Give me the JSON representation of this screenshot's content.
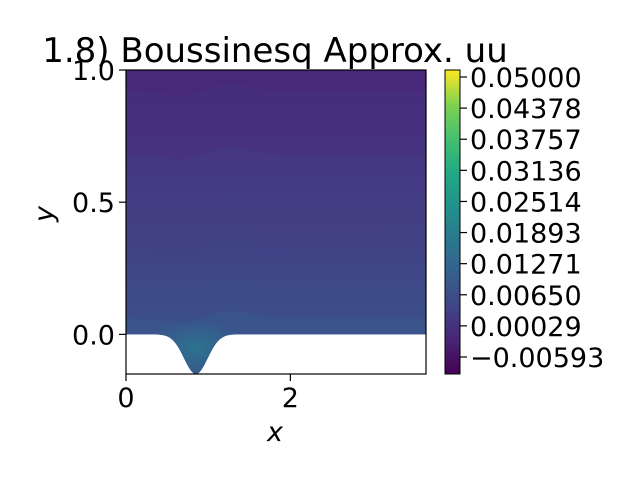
{
  "chart_data": {
    "type": "heatmap",
    "title": "1.8) Boussinesq Approx. uu",
    "xlabel": "x",
    "ylabel": "y",
    "xlim": [
      0,
      3.65
    ],
    "ylim": [
      -0.15,
      1.0
    ],
    "xticks": [
      {
        "value": 0,
        "label": "0"
      },
      {
        "value": 2,
        "label": "2"
      }
    ],
    "yticks": [
      {
        "value": 0.0,
        "label": "0.0"
      },
      {
        "value": 0.5,
        "label": "0.5"
      },
      {
        "value": 1.0,
        "label": "1.0"
      }
    ],
    "colormap": "viridis",
    "colorbar": {
      "min": -0.00593,
      "max": 0.05,
      "ticks": [
        "0.05000",
        "0.04378",
        "0.03757",
        "0.03136",
        "0.02514",
        "0.01893",
        "0.01271",
        "0.00650",
        "0.00029",
        "−0.00593"
      ]
    },
    "bottom_boundary": {
      "description": "Gaussian bump",
      "center_x": 0.85,
      "depth": -0.15,
      "width": 0.3,
      "flat_after_x": 1.6
    },
    "field_summary": {
      "near_wall_value": 0.008,
      "mid_value": 0.004,
      "top_value": 0.001,
      "bump_peak_value": 0.013
    }
  }
}
